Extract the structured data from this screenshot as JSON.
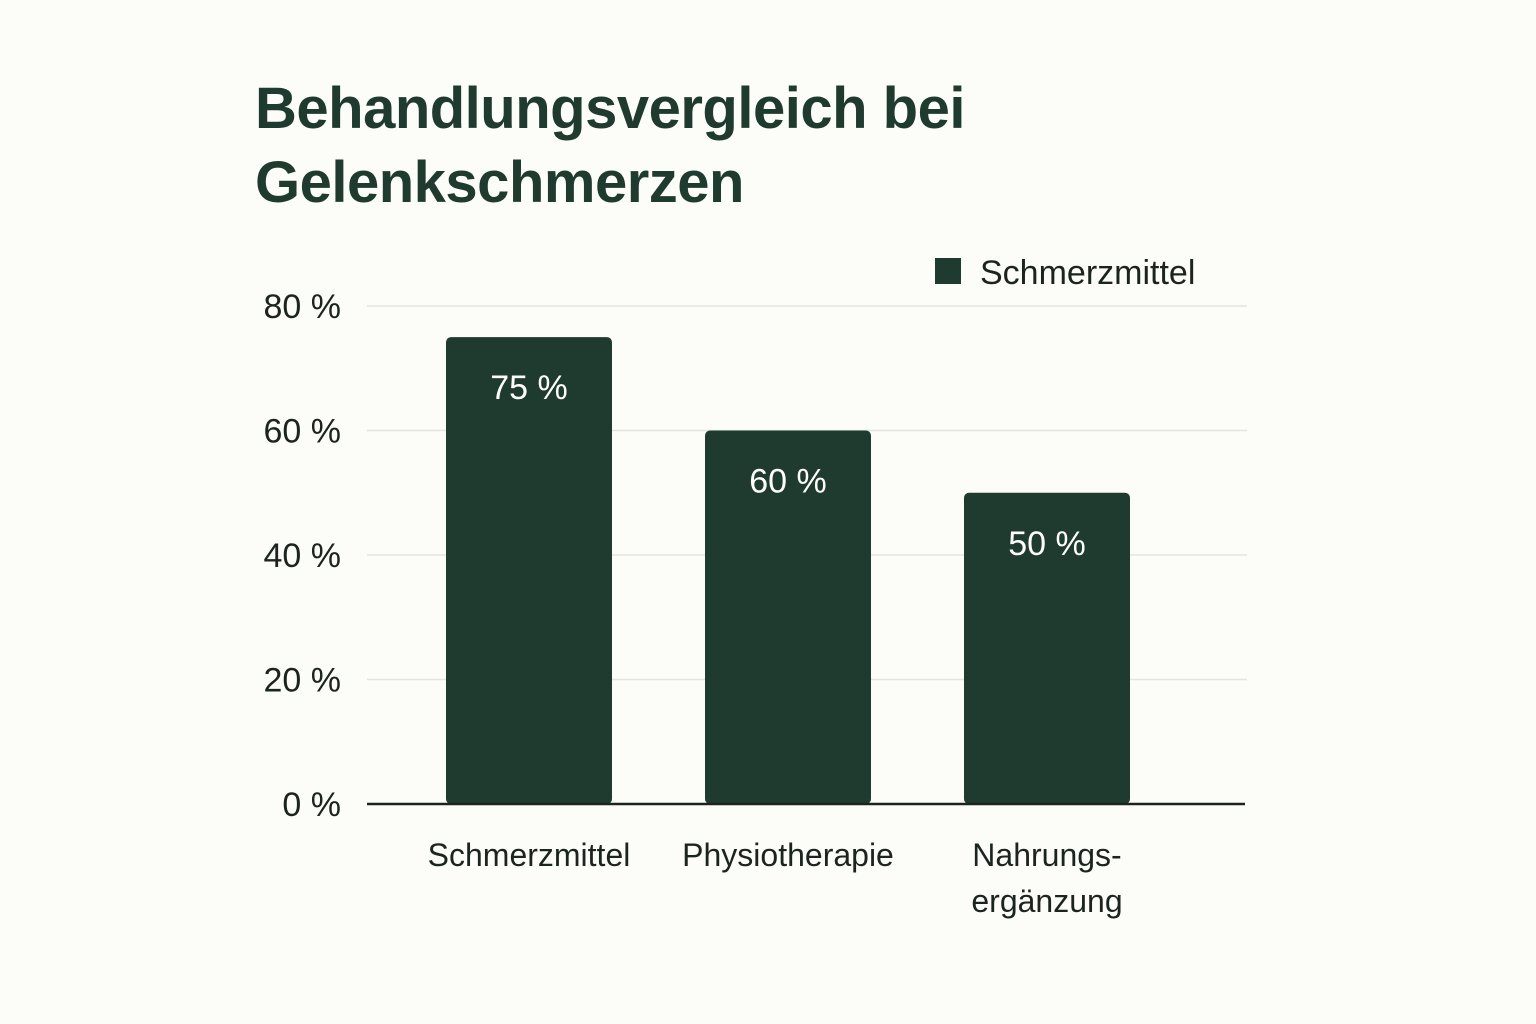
{
  "chart_data": {
    "type": "bar",
    "title_lines": [
      "Behandlungsvergleich bei",
      "Gelenkschmerzen"
    ],
    "categories": [
      [
        "Schmerzmittel"
      ],
      [
        "Physiotherapie"
      ],
      [
        "Nahrungs-",
        "ergänzung"
      ]
    ],
    "series": [
      {
        "name": "Schmerzmittel",
        "values": [
          75,
          60,
          50
        ],
        "value_labels": [
          "75 %",
          "60 %",
          "50 %"
        ],
        "color": "#1f3a2e"
      }
    ],
    "y_ticks": [
      0,
      20,
      40,
      60,
      80
    ],
    "y_tick_labels": [
      "0 %",
      "20 %",
      "40 %",
      "60 %",
      "80 %"
    ],
    "ylim": [
      0,
      80
    ],
    "grid": true,
    "legend_position": "top-right"
  }
}
